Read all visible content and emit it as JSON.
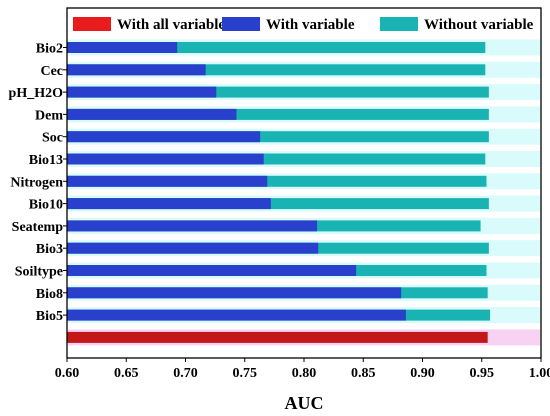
{
  "chart_data": {
    "type": "bar",
    "orientation": "horizontal",
    "xlabel": "AUC",
    "xlim": [
      0.6,
      1.0
    ],
    "xticks": [
      "0.60",
      "0.65",
      "0.70",
      "0.75",
      "0.80",
      "0.85",
      "0.90",
      "0.95",
      "1.00"
    ],
    "legend_position": "top",
    "categories": [
      "Bio2",
      "Cec",
      "pH_H2O",
      "Dem",
      "Soc",
      "Bio13",
      "Nitrogen",
      "Bio10",
      "Seatemp",
      "Bio3",
      "Soiltype",
      "Bio8",
      "Bio5",
      ""
    ],
    "series": [
      {
        "name": "With all variable",
        "color": "#e81c1c",
        "values": [
          null,
          null,
          null,
          null,
          null,
          null,
          null,
          null,
          null,
          null,
          null,
          null,
          null,
          0.955
        ]
      },
      {
        "name": "With variable",
        "color": "#2940cc",
        "values": [
          0.693,
          0.717,
          0.726,
          0.743,
          0.763,
          0.766,
          0.769,
          0.772,
          0.811,
          0.812,
          0.844,
          0.882,
          0.886,
          null
        ]
      },
      {
        "name": "Without variable",
        "color": "#1ab3b3",
        "values": [
          0.953,
          0.953,
          0.956,
          0.956,
          0.956,
          0.953,
          0.954,
          0.956,
          0.949,
          0.956,
          0.954,
          0.955,
          0.957,
          null
        ]
      }
    ]
  }
}
